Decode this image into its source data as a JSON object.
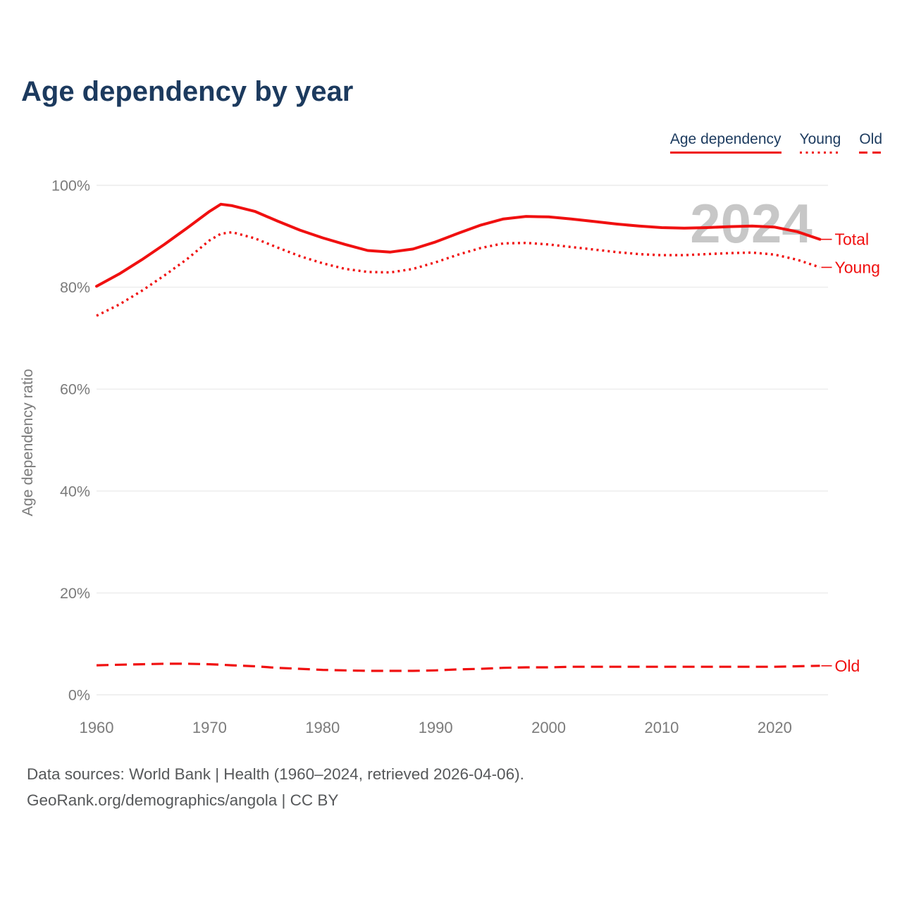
{
  "page": {
    "title": "Age dependency by year",
    "watermark": "2024"
  },
  "legend": [
    {
      "label": "Age dependency",
      "style": "solid"
    },
    {
      "label": "Young",
      "style": "dotted"
    },
    {
      "label": "Old",
      "style": "dashed"
    }
  ],
  "footer": {
    "line1": "Data sources: World Bank | Health (1960–2024, retrieved 2026-04-06).",
    "line2": "GeoRank.org/demographics/angola | CC BY"
  },
  "colors": {
    "accent": "#f01010",
    "title": "#1c3a5e",
    "axis": "#7b7b7b",
    "grid": "#ececec",
    "watermark": "#c7c7c7",
    "footer": "#56585a"
  },
  "chart_data": {
    "type": "line",
    "title": "Age dependency by year",
    "xlabel": "",
    "ylabel": "Age dependency ratio",
    "xlim": [
      1960,
      2024
    ],
    "ylim": [
      0,
      100
    ],
    "grid": "horizontal",
    "legend_position": "top-right",
    "x_ticks": [
      1960,
      1970,
      1980,
      1990,
      2000,
      2010,
      2020
    ],
    "y_ticks": [
      {
        "value": 0,
        "label": "0%"
      },
      {
        "value": 20,
        "label": "20%"
      },
      {
        "value": 40,
        "label": "40%"
      },
      {
        "value": 60,
        "label": "60%"
      },
      {
        "value": 80,
        "label": "80%"
      },
      {
        "value": 100,
        "label": "100%"
      }
    ],
    "x": [
      1960,
      1962,
      1964,
      1966,
      1968,
      1970,
      1971,
      1972,
      1974,
      1976,
      1978,
      1980,
      1982,
      1984,
      1986,
      1988,
      1990,
      1992,
      1994,
      1996,
      1998,
      2000,
      2002,
      2004,
      2006,
      2008,
      2010,
      2012,
      2014,
      2016,
      2018,
      2020,
      2022,
      2024
    ],
    "series": [
      {
        "name": "Total",
        "dash": "solid",
        "values": [
          80.2,
          82.6,
          85.4,
          88.4,
          91.6,
          94.9,
          96.3,
          96.0,
          94.9,
          93.0,
          91.2,
          89.7,
          88.4,
          87.2,
          86.9,
          87.5,
          88.9,
          90.6,
          92.2,
          93.4,
          93.9,
          93.8,
          93.4,
          92.9,
          92.4,
          92.0,
          91.7,
          91.6,
          91.7,
          91.9,
          92.0,
          91.8,
          90.9,
          89.4
        ]
      },
      {
        "name": "Young",
        "dash": "dotted",
        "values": [
          74.4,
          76.6,
          79.3,
          82.3,
          85.5,
          89.2,
          90.5,
          90.8,
          89.6,
          87.8,
          86.1,
          84.7,
          83.6,
          83.0,
          82.9,
          83.6,
          84.9,
          86.4,
          87.7,
          88.6,
          88.7,
          88.4,
          87.9,
          87.4,
          86.9,
          86.5,
          86.3,
          86.3,
          86.5,
          86.7,
          86.8,
          86.4,
          85.4,
          83.9
        ]
      },
      {
        "name": "Old",
        "dash": "dashed",
        "values": [
          5.8,
          5.9,
          6.0,
          6.1,
          6.1,
          6.0,
          5.9,
          5.8,
          5.6,
          5.3,
          5.1,
          4.9,
          4.8,
          4.7,
          4.7,
          4.7,
          4.8,
          5.0,
          5.1,
          5.3,
          5.4,
          5.4,
          5.5,
          5.5,
          5.5,
          5.5,
          5.5,
          5.5,
          5.5,
          5.5,
          5.5,
          5.5,
          5.6,
          5.7
        ]
      }
    ]
  }
}
